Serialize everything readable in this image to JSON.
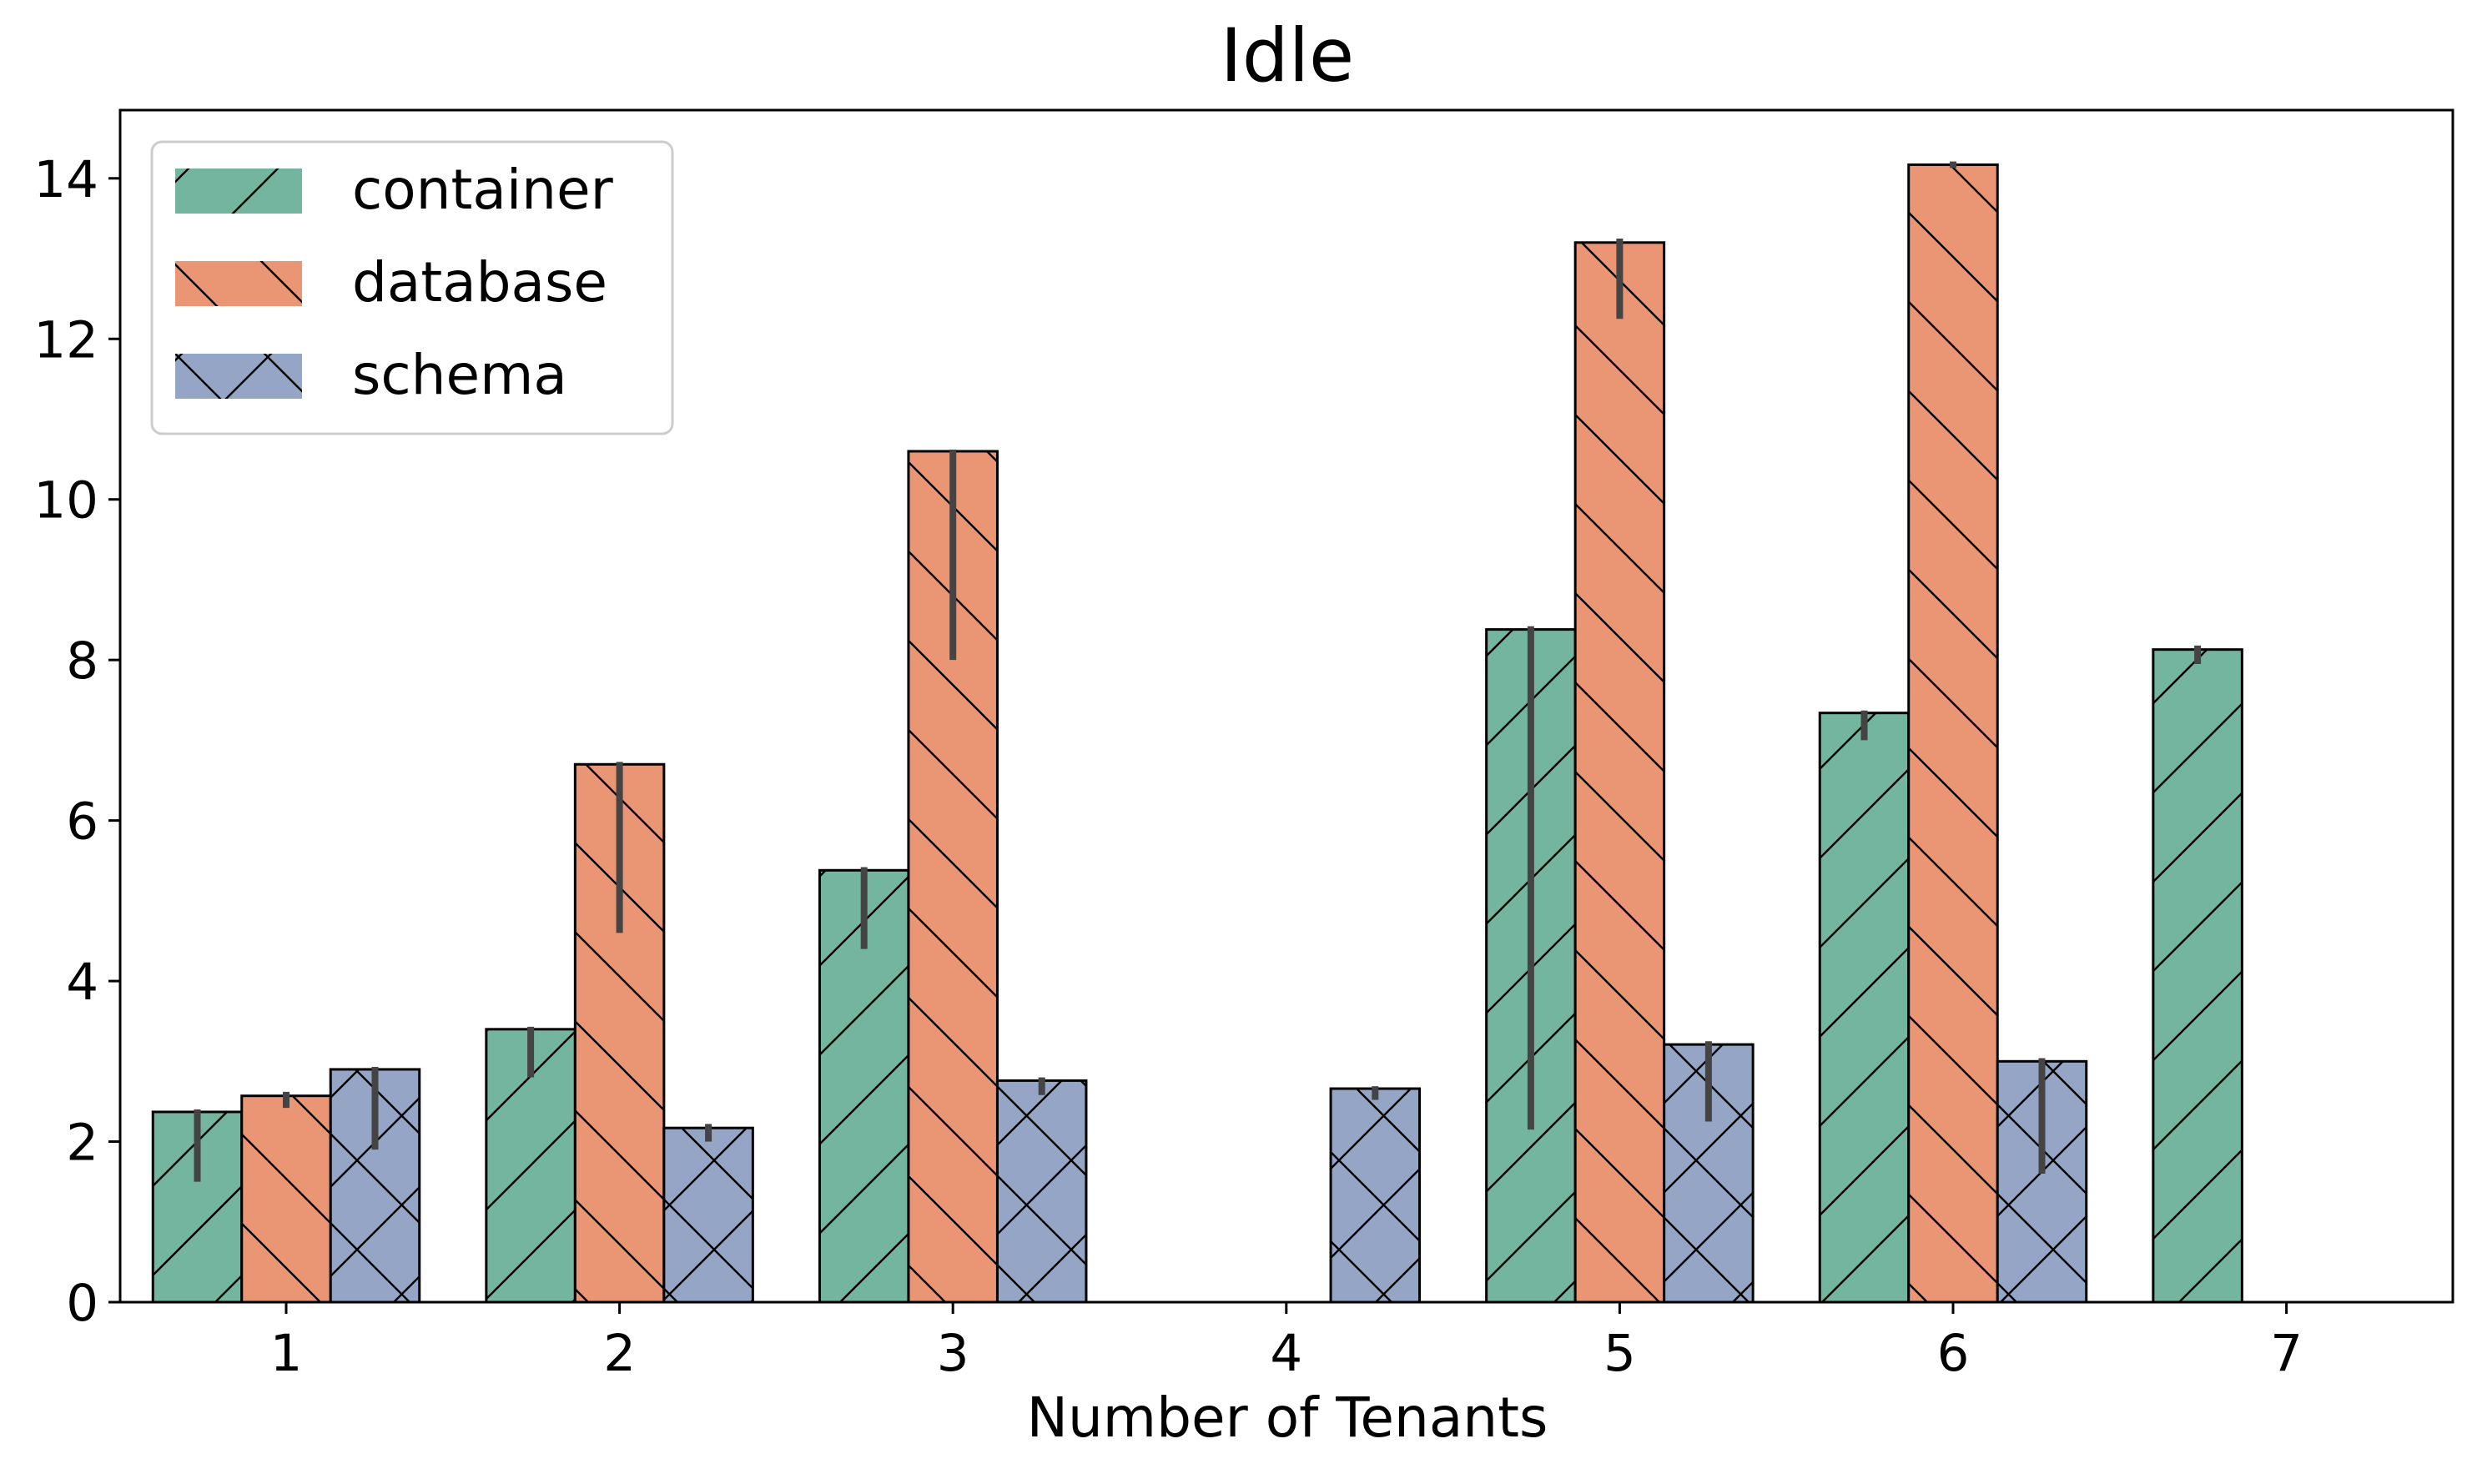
{
  "chart_data": {
    "type": "bar",
    "title": "Idle",
    "xlabel": "Number of Tenants",
    "ylabel": "",
    "categories": [
      "1",
      "2",
      "3",
      "4",
      "5",
      "6",
      "7"
    ],
    "ylim": [
      0,
      14.85
    ],
    "yticks": [
      0,
      2,
      4,
      6,
      8,
      10,
      12,
      14
    ],
    "ytick_labels": [
      "0",
      "2",
      "4",
      "6",
      "8",
      "10",
      "12",
      "14"
    ],
    "grid": false,
    "legend_position": "top-left",
    "series": [
      {
        "name": "container",
        "color": "#73b59f",
        "hatch": "forward-diagonal",
        "values": [
          2.37,
          3.4,
          5.38,
          null,
          8.38,
          7.34,
          8.13
        ],
        "err_low": [
          1.5,
          2.8,
          4.4,
          null,
          2.15,
          7.0,
          7.95
        ],
        "err_high": [
          2.4,
          3.43,
          5.42,
          null,
          8.42,
          7.37,
          8.18
        ]
      },
      {
        "name": "database",
        "color": "#ea9674",
        "hatch": "back-diagonal",
        "values": [
          2.57,
          6.7,
          10.6,
          null,
          13.2,
          14.17,
          null
        ],
        "err_low": [
          2.42,
          4.6,
          8.0,
          null,
          12.25,
          14.13,
          null
        ],
        "err_high": [
          2.62,
          6.73,
          10.62,
          null,
          13.25,
          14.21,
          null
        ]
      },
      {
        "name": "schema",
        "color": "#94a5c5",
        "hatch": "cross",
        "values": [
          2.9,
          2.17,
          2.76,
          2.66,
          3.21,
          3.0,
          null
        ],
        "err_low": [
          1.9,
          2.0,
          2.58,
          2.52,
          2.25,
          1.6,
          null
        ],
        "err_high": [
          2.93,
          2.22,
          2.8,
          2.69,
          3.25,
          3.04,
          null
        ]
      }
    ]
  }
}
